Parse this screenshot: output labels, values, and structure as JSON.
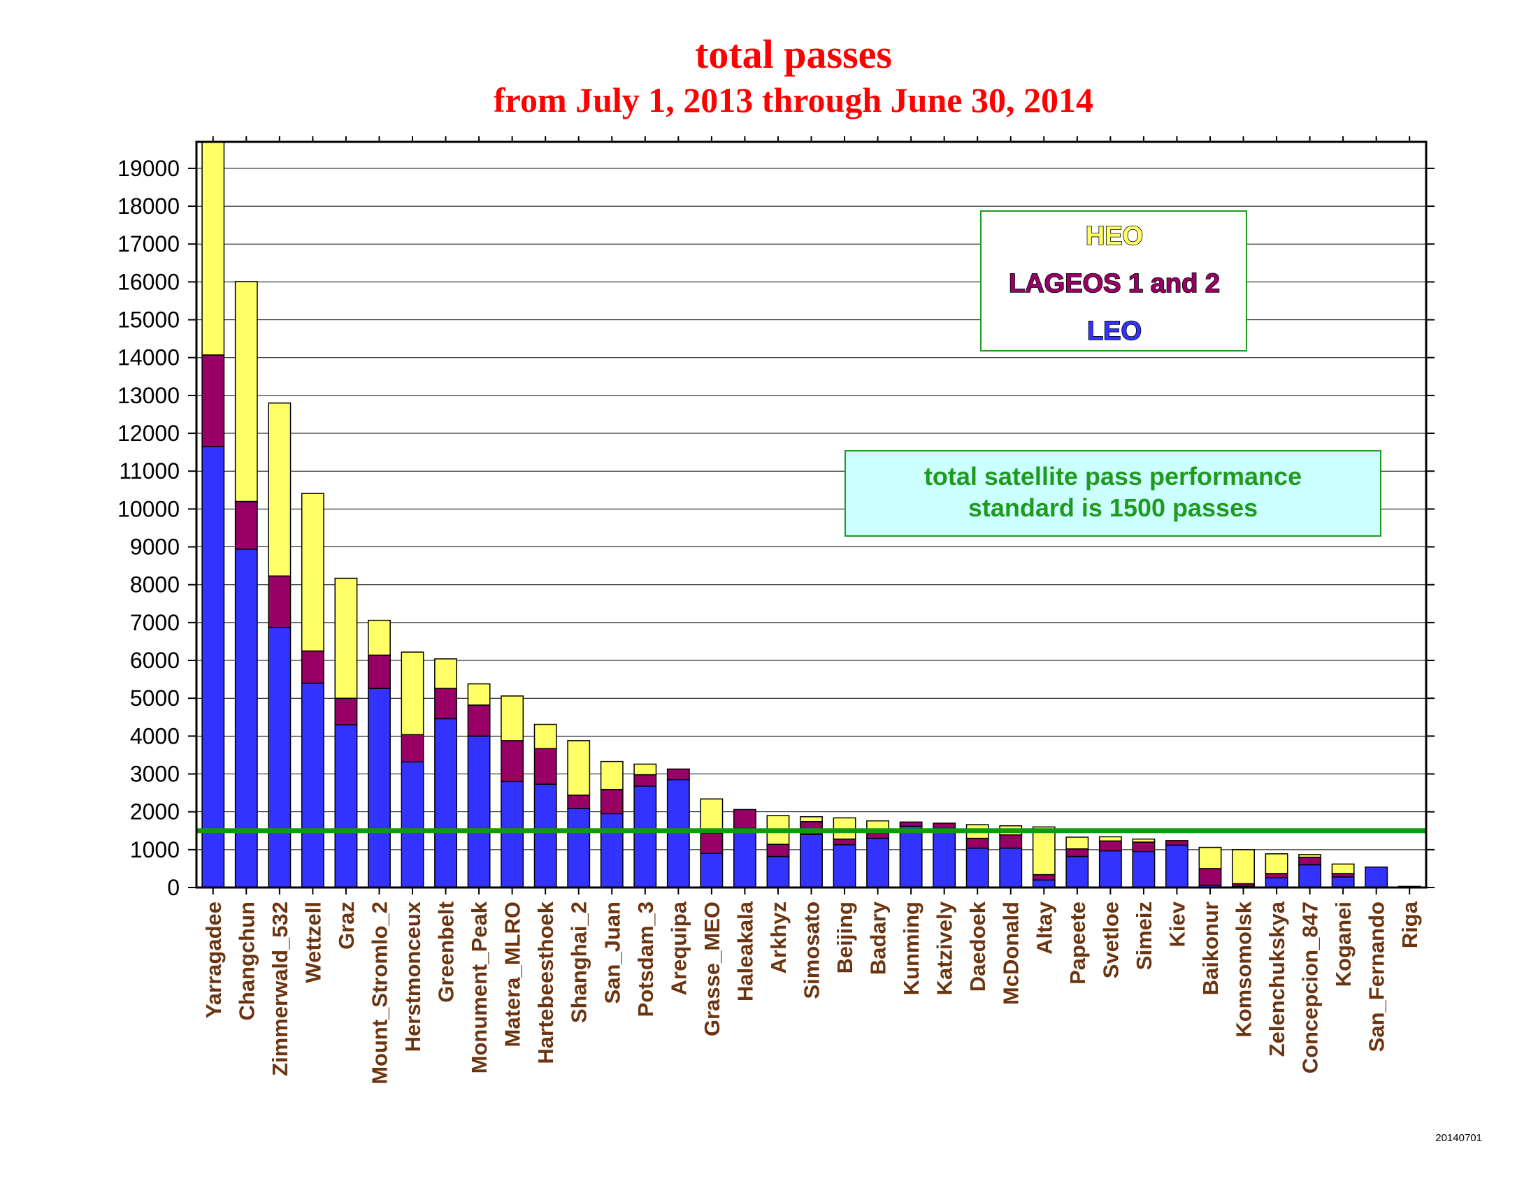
{
  "chart_data": {
    "type": "bar",
    "stacked": true,
    "title": "total passes",
    "subtitle": "from July 1, 2013 through June 30, 2014",
    "ylim": [
      0,
      19700
    ],
    "yticks": [
      "0",
      "1000",
      "2000",
      "3000",
      "4000",
      "5000",
      "6000",
      "7000",
      "8000",
      "9000",
      "10000",
      "11000",
      "12000",
      "13000",
      "14000",
      "15000",
      "16000",
      "17000",
      "18000",
      "19000"
    ],
    "grid": true,
    "legend_position": "top-right",
    "categories": [
      "Yarragadee",
      "Changchun",
      "Zimmerwald_532",
      "Wettzell",
      "Graz",
      "Mount_Stromlo_2",
      "Herstmonceux",
      "Greenbelt",
      "Monument_Peak",
      "Matera_MLRO",
      "Hartebeesthoek",
      "Shanghai_2",
      "San_Juan",
      "Potsdam_3",
      "Arequipa",
      "Grasse_MEO",
      "Haleakala",
      "Arkhyz",
      "Simosato",
      "Beijing",
      "Badary",
      "Kunming",
      "Katzively",
      "Daedoek",
      "McDonald",
      "Altay",
      "Papeete",
      "Svetloe",
      "Simeiz",
      "Kiev",
      "Baikonur",
      "Komsomolsk",
      "Zelenchukskya",
      "Concepcion_847",
      "Koganei",
      "San_Fernando",
      "Riga"
    ],
    "series": [
      {
        "name": "LEO",
        "color": "#3333ff",
        "values": [
          11650,
          8940,
          6870,
          5400,
          4300,
          5260,
          3320,
          4460,
          4000,
          2800,
          2730,
          2090,
          1950,
          2680,
          2850,
          900,
          1560,
          820,
          1400,
          1130,
          1300,
          1620,
          1560,
          1040,
          1040,
          200,
          820,
          970,
          950,
          1120,
          60,
          30,
          260,
          600,
          280,
          540,
          30
        ]
      },
      {
        "name": "LAGEOS 1 and 2",
        "color": "#990066",
        "values": [
          2420,
          1260,
          1360,
          850,
          700,
          880,
          720,
          800,
          820,
          1080,
          940,
          350,
          640,
          300,
          280,
          540,
          500,
          320,
          340,
          150,
          150,
          110,
          140,
          260,
          350,
          140,
          200,
          260,
          250,
          120,
          440,
          70,
          110,
          200,
          90,
          0,
          0
        ]
      },
      {
        "name": "HEO",
        "color": "#ffff66",
        "values": [
          5630,
          5810,
          4570,
          4160,
          3170,
          920,
          2180,
          780,
          560,
          1180,
          640,
          1440,
          740,
          280,
          0,
          900,
          0,
          760,
          130,
          560,
          310,
          0,
          0,
          360,
          240,
          1260,
          310,
          110,
          80,
          0,
          560,
          900,
          520,
          70,
          250,
          0,
          0
        ]
      }
    ],
    "reference_line": {
      "value": 1500,
      "color": "#109a10"
    },
    "annotation": [
      "total satellite pass performance",
      "standard is 1500 passes"
    ],
    "stamp": "20140701"
  }
}
